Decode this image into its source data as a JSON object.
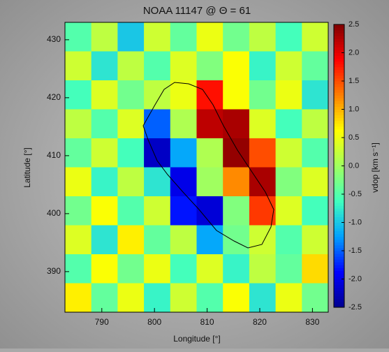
{
  "chart_data": {
    "type": "heatmap",
    "title": "NOAA 11147 @ Θ = 61",
    "x_label": "Longitude [°]",
    "y_label": "Latitude [°]",
    "colorbar_label": "vdop [km s⁻¹]",
    "x": [
      785.5,
      790.5,
      795.5,
      800.5,
      805.5,
      810.5,
      815.5,
      820.5,
      825.5,
      830.5
    ],
    "y": [
      430.5,
      425.5,
      420.5,
      415.5,
      410.5,
      405.5,
      400.5,
      395.5,
      390.5,
      385.5
    ],
    "z": [
      [
        -0.5,
        0.2,
        -1.0,
        0.3,
        -0.4,
        0.5,
        -0.3,
        0.2,
        -0.6,
        0.3
      ],
      [
        0.3,
        -0.8,
        0.2,
        -0.5,
        0.4,
        -0.2,
        0.6,
        -0.7,
        0.3,
        -0.4
      ],
      [
        -0.6,
        0.4,
        -0.3,
        0.2,
        0.5,
        1.8,
        0.6,
        -0.3,
        0.5,
        -0.8
      ],
      [
        0.2,
        -0.5,
        0.4,
        -1.5,
        0.1,
        2.2,
        2.3,
        0.4,
        -0.6,
        0.2
      ],
      [
        -0.4,
        0.3,
        -0.6,
        -2.2,
        -1.2,
        0.1,
        2.4,
        1.5,
        0.3,
        -0.5
      ],
      [
        0.5,
        -0.7,
        0.2,
        -0.8,
        -2.0,
        0.0,
        1.2,
        2.3,
        -0.2,
        0.4
      ],
      [
        -0.3,
        0.6,
        -0.5,
        0.3,
        -1.8,
        -2.1,
        -0.2,
        1.6,
        0.4,
        -0.6
      ],
      [
        0.4,
        -0.8,
        0.7,
        -0.4,
        0.2,
        -1.2,
        -0.3,
        0.3,
        -0.5,
        0.3
      ],
      [
        -0.5,
        0.6,
        -0.3,
        0.5,
        -0.6,
        0.4,
        -0.7,
        0.2,
        -0.4,
        0.8
      ],
      [
        0.7,
        -0.4,
        0.5,
        -0.7,
        0.3,
        -0.5,
        0.6,
        -0.8,
        0.5,
        -0.3
      ]
    ],
    "xlim": [
      783,
      833
    ],
    "ylim": [
      383,
      433
    ],
    "zlim": [
      -2.5,
      2.5
    ],
    "xticks": [
      790,
      800,
      810,
      820,
      830
    ],
    "yticks": [
      390,
      400,
      410,
      420,
      430
    ],
    "zticks": [
      {
        "value": 2.5,
        "label": "2.5"
      },
      {
        "value": 2,
        "label": "2.0"
      },
      {
        "value": 1.5,
        "label": "1.5"
      },
      {
        "value": 1,
        "label": "1.0"
      },
      {
        "value": 0.5,
        "label": "0.5"
      },
      {
        "value": 0,
        "label": "0.0"
      },
      {
        "value": -0.5,
        "label": "-0.5"
      },
      {
        "value": -1,
        "label": "-1.0"
      },
      {
        "value": -1.5,
        "label": "-1.5"
      },
      {
        "value": -2,
        "label": "-2.0"
      },
      {
        "value": -2.5,
        "label": "-2.5"
      }
    ],
    "colormap": [
      "#00008f",
      "#0000ff",
      "#00a0ff",
      "#40ffbf",
      "#a0ff60",
      "#ffff00",
      "#ff8000",
      "#ff0000",
      "#800000"
    ]
  }
}
